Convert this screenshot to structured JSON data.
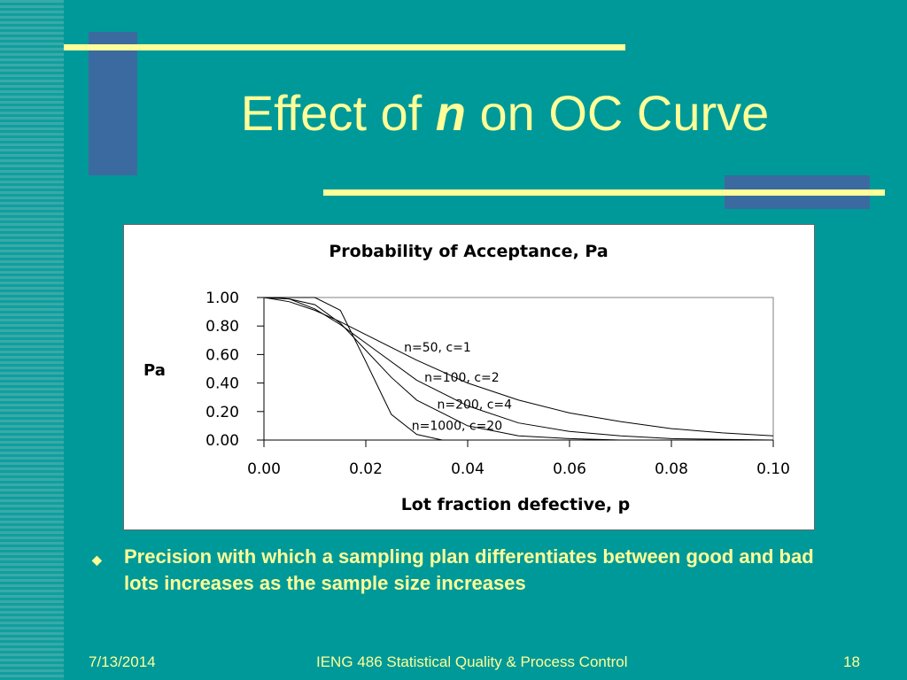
{
  "slide": {
    "title_prefix": "Effect of ",
    "title_em": "n",
    "title_suffix": " on OC Curve",
    "bullet": "Precision with which a sampling plan differentiates between good and bad lots increases as the sample size increases",
    "footer_date": "7/13/2014",
    "footer_course": "IENG 486 Statistical Quality & Process Control",
    "footer_page": "18",
    "colors": {
      "background": "#009999",
      "title": "#ffff99",
      "accent_block": "#3b6aa0"
    },
    "bullet_icon": "diamond-bullet-icon"
  },
  "chart_data": {
    "type": "line",
    "title": "Probability of Acceptance, Pa",
    "xlabel": "Lot fraction defective, p",
    "ylabel": "Pa",
    "xlim": [
      0,
      0.1
    ],
    "ylim": [
      0,
      1.0
    ],
    "x_ticks": [
      "0.00",
      "0.02",
      "0.04",
      "0.06",
      "0.08",
      "0.10"
    ],
    "y_ticks": [
      "0.00",
      "0.20",
      "0.40",
      "0.60",
      "0.80",
      "1.00"
    ],
    "grid": false,
    "series": [
      {
        "name": "n=50, c=1",
        "x": [
          0,
          0.005,
          0.01,
          0.015,
          0.02,
          0.03,
          0.04,
          0.05,
          0.06,
          0.07,
          0.08,
          0.09,
          0.1
        ],
        "y": [
          1.0,
          0.97,
          0.91,
          0.83,
          0.74,
          0.56,
          0.4,
          0.28,
          0.19,
          0.13,
          0.08,
          0.05,
          0.03
        ]
      },
      {
        "name": "n=100, c=2",
        "x": [
          0,
          0.005,
          0.01,
          0.015,
          0.02,
          0.03,
          0.04,
          0.05,
          0.06,
          0.07,
          0.08,
          0.1
        ],
        "y": [
          1.0,
          0.99,
          0.92,
          0.81,
          0.68,
          0.42,
          0.24,
          0.12,
          0.06,
          0.03,
          0.01,
          0.0
        ]
      },
      {
        "name": "n=200, c=4",
        "x": [
          0,
          0.005,
          0.01,
          0.015,
          0.02,
          0.025,
          0.03,
          0.04,
          0.05,
          0.06,
          0.07,
          0.1
        ],
        "y": [
          1.0,
          0.99,
          0.95,
          0.82,
          0.63,
          0.44,
          0.28,
          0.1,
          0.03,
          0.01,
          0.0,
          0.0
        ]
      },
      {
        "name": "n=1000, c=20",
        "x": [
          0,
          0.01,
          0.015,
          0.02,
          0.025,
          0.03,
          0.035,
          0.04,
          0.1
        ],
        "y": [
          1.0,
          1.0,
          0.91,
          0.55,
          0.18,
          0.04,
          0.0,
          0.0,
          0.0
        ]
      }
    ]
  }
}
